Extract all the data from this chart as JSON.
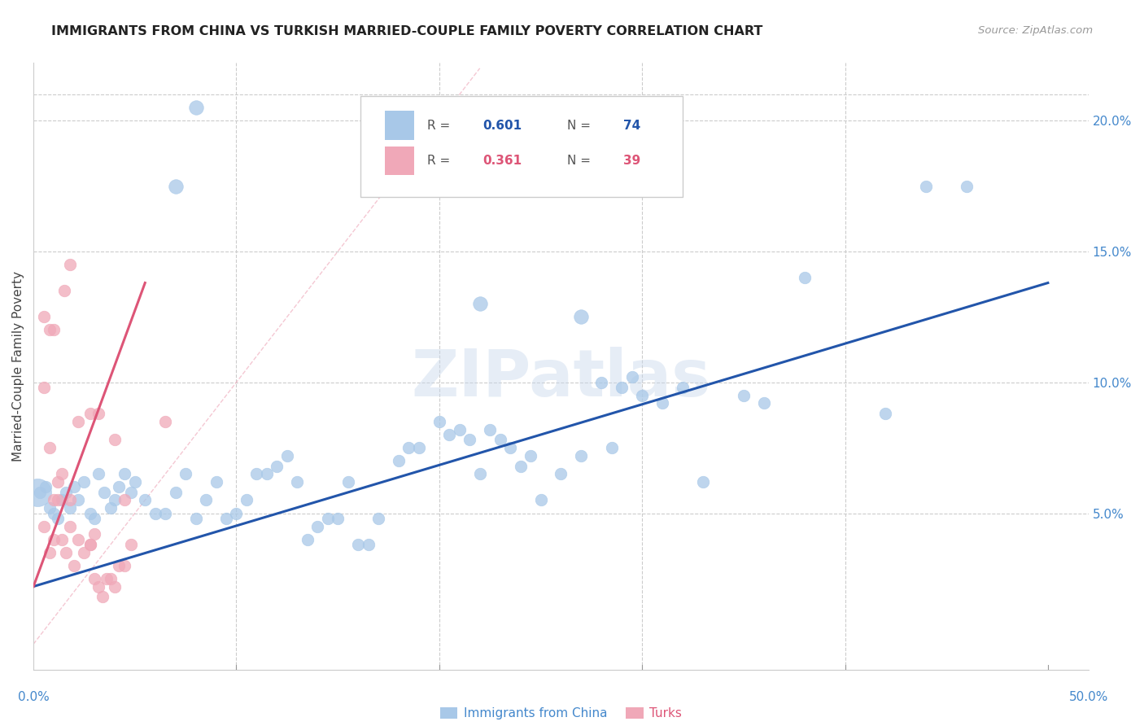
{
  "title": "IMMIGRANTS FROM CHINA VS TURKISH MARRIED-COUPLE FAMILY POVERTY CORRELATION CHART",
  "source": "Source: ZipAtlas.com",
  "ylabel": "Married-Couple Family Poverty",
  "xlim": [
    0.0,
    0.52
  ],
  "ylim": [
    -0.01,
    0.222
  ],
  "blue_color": "#a8c8e8",
  "pink_color": "#f0a8b8",
  "blue_line_color": "#2255aa",
  "pink_line_color": "#dd5577",
  "diagonal_color": "#f0b0c0",
  "background_color": "#ffffff",
  "grid_color": "#cccccc",
  "watermark": "ZIPatlas",
  "china_scatter": [
    [
      0.003,
      0.058
    ],
    [
      0.006,
      0.06
    ],
    [
      0.008,
      0.052
    ],
    [
      0.01,
      0.05
    ],
    [
      0.012,
      0.048
    ],
    [
      0.014,
      0.055
    ],
    [
      0.016,
      0.058
    ],
    [
      0.018,
      0.052
    ],
    [
      0.02,
      0.06
    ],
    [
      0.022,
      0.055
    ],
    [
      0.025,
      0.062
    ],
    [
      0.028,
      0.05
    ],
    [
      0.03,
      0.048
    ],
    [
      0.032,
      0.065
    ],
    [
      0.035,
      0.058
    ],
    [
      0.038,
      0.052
    ],
    [
      0.04,
      0.055
    ],
    [
      0.042,
      0.06
    ],
    [
      0.045,
      0.065
    ],
    [
      0.048,
      0.058
    ],
    [
      0.05,
      0.062
    ],
    [
      0.055,
      0.055
    ],
    [
      0.06,
      0.05
    ],
    [
      0.065,
      0.05
    ],
    [
      0.07,
      0.058
    ],
    [
      0.075,
      0.065
    ],
    [
      0.08,
      0.048
    ],
    [
      0.085,
      0.055
    ],
    [
      0.09,
      0.062
    ],
    [
      0.095,
      0.048
    ],
    [
      0.1,
      0.05
    ],
    [
      0.105,
      0.055
    ],
    [
      0.11,
      0.065
    ],
    [
      0.115,
      0.065
    ],
    [
      0.12,
      0.068
    ],
    [
      0.125,
      0.072
    ],
    [
      0.13,
      0.062
    ],
    [
      0.135,
      0.04
    ],
    [
      0.14,
      0.045
    ],
    [
      0.145,
      0.048
    ],
    [
      0.15,
      0.048
    ],
    [
      0.155,
      0.062
    ],
    [
      0.16,
      0.038
    ],
    [
      0.165,
      0.038
    ],
    [
      0.17,
      0.048
    ],
    [
      0.18,
      0.07
    ],
    [
      0.185,
      0.075
    ],
    [
      0.19,
      0.075
    ],
    [
      0.2,
      0.085
    ],
    [
      0.205,
      0.08
    ],
    [
      0.21,
      0.082
    ],
    [
      0.215,
      0.078
    ],
    [
      0.22,
      0.065
    ],
    [
      0.225,
      0.082
    ],
    [
      0.23,
      0.078
    ],
    [
      0.235,
      0.075
    ],
    [
      0.24,
      0.068
    ],
    [
      0.245,
      0.072
    ],
    [
      0.25,
      0.055
    ],
    [
      0.26,
      0.065
    ],
    [
      0.27,
      0.072
    ],
    [
      0.28,
      0.1
    ],
    [
      0.285,
      0.075
    ],
    [
      0.29,
      0.098
    ],
    [
      0.295,
      0.102
    ],
    [
      0.3,
      0.095
    ],
    [
      0.31,
      0.092
    ],
    [
      0.32,
      0.098
    ],
    [
      0.33,
      0.062
    ],
    [
      0.35,
      0.095
    ],
    [
      0.36,
      0.092
    ],
    [
      0.38,
      0.14
    ],
    [
      0.42,
      0.088
    ],
    [
      0.44,
      0.175
    ],
    [
      0.46,
      0.175
    ]
  ],
  "china_scatter_large": [
    [
      0.002,
      0.058
    ]
  ],
  "china_special": [
    [
      0.08,
      0.205
    ],
    [
      0.07,
      0.175
    ],
    [
      0.22,
      0.13
    ],
    [
      0.27,
      0.125
    ]
  ],
  "turks_scatter": [
    [
      0.005,
      0.045
    ],
    [
      0.008,
      0.035
    ],
    [
      0.01,
      0.04
    ],
    [
      0.012,
      0.055
    ],
    [
      0.014,
      0.04
    ],
    [
      0.016,
      0.035
    ],
    [
      0.018,
      0.045
    ],
    [
      0.02,
      0.03
    ],
    [
      0.022,
      0.04
    ],
    [
      0.025,
      0.035
    ],
    [
      0.028,
      0.038
    ],
    [
      0.03,
      0.025
    ],
    [
      0.032,
      0.022
    ],
    [
      0.034,
      0.018
    ],
    [
      0.036,
      0.025
    ],
    [
      0.038,
      0.025
    ],
    [
      0.04,
      0.022
    ],
    [
      0.042,
      0.03
    ],
    [
      0.045,
      0.03
    ],
    [
      0.048,
      0.038
    ],
    [
      0.005,
      0.098
    ],
    [
      0.008,
      0.12
    ],
    [
      0.01,
      0.12
    ],
    [
      0.015,
      0.135
    ],
    [
      0.018,
      0.145
    ],
    [
      0.022,
      0.085
    ],
    [
      0.028,
      0.088
    ],
    [
      0.032,
      0.088
    ],
    [
      0.04,
      0.078
    ],
    [
      0.045,
      0.055
    ],
    [
      0.065,
      0.085
    ],
    [
      0.005,
      0.125
    ],
    [
      0.008,
      0.075
    ],
    [
      0.01,
      0.055
    ],
    [
      0.012,
      0.062
    ],
    [
      0.014,
      0.065
    ],
    [
      0.018,
      0.055
    ],
    [
      0.028,
      0.038
    ],
    [
      0.03,
      0.042
    ]
  ],
  "blue_line": [
    [
      0.0,
      0.022
    ],
    [
      0.5,
      0.138
    ]
  ],
  "pink_line": [
    [
      0.0,
      0.022
    ],
    [
      0.055,
      0.138
    ]
  ],
  "diagonal_line": [
    [
      0.0,
      0.0
    ],
    [
      0.22,
      0.22
    ]
  ],
  "ytick_vals": [
    0.05,
    0.1,
    0.15,
    0.2
  ],
  "ytick_labels": [
    "5.0%",
    "10.0%",
    "15.0%",
    "20.0%"
  ],
  "xtick_label_left": "0.0%",
  "xtick_label_right": "50.0%",
  "legend_blue_r": "0.601",
  "legend_blue_n": "74",
  "legend_pink_r": "0.361",
  "legend_pink_n": "39"
}
